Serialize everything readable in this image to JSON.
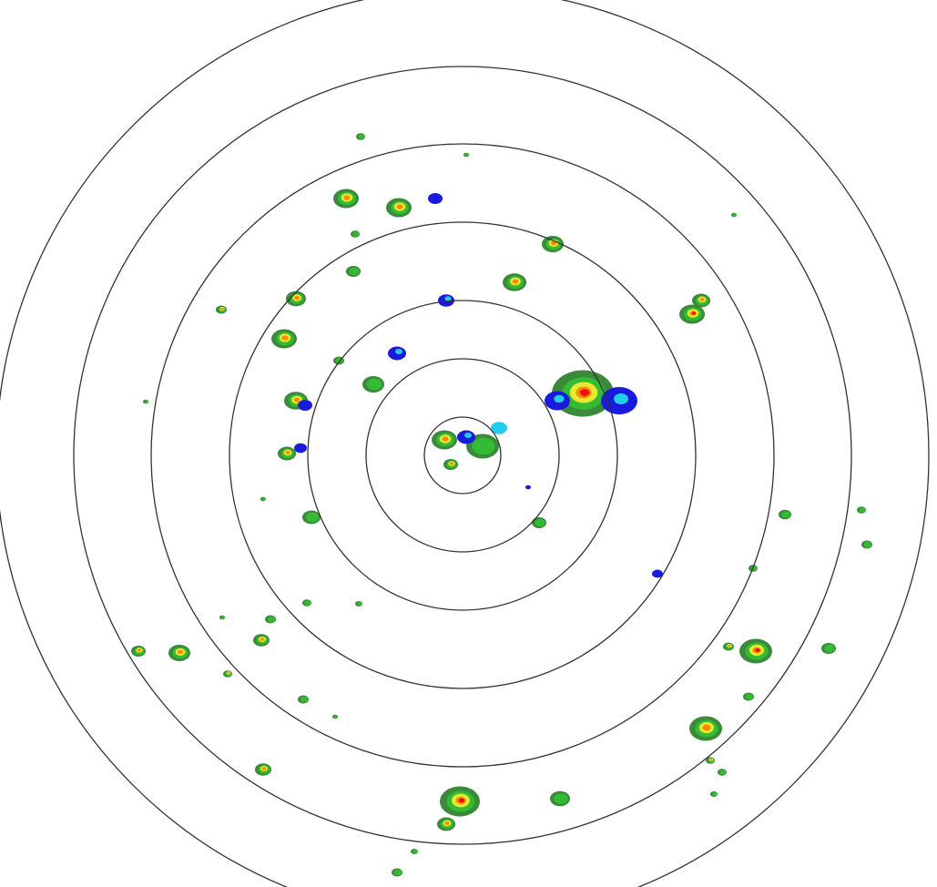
{
  "radar": {
    "range_rings": 7,
    "colors": {
      "ring": "#333333",
      "weak_blue": "#1a1adc",
      "cyan": "#22ccee",
      "dark_green": "#3a8a3a",
      "green": "#33bb33",
      "yellow": "#e8e830",
      "orange": "#ff8800",
      "red": "#ee1111"
    }
  }
}
